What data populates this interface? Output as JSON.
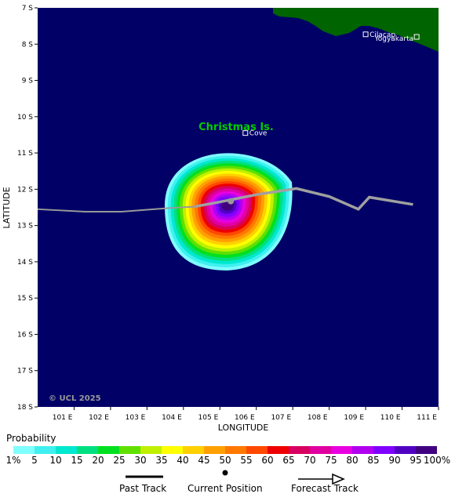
{
  "map": {
    "lat_ticks": [
      "7 S",
      "8 S",
      "9 S",
      "10 S",
      "11 S",
      "12 S",
      "13 S",
      "14 S",
      "15 S",
      "16 S",
      "17 S",
      "18 S"
    ],
    "lon_ticks": [
      "101 E",
      "102 E",
      "103 E",
      "104 E",
      "105 E",
      "106 E",
      "107 E",
      "108 E",
      "109 E",
      "110 E",
      "111 E"
    ],
    "xlabel": "LONGITUDE",
    "ylabel": "LATITUDE",
    "copyright": "© UCL 2025",
    "ocean_color": "#000066",
    "land_color": "#006400",
    "places": [
      {
        "name": "Christmas Is.",
        "lon": 105.6,
        "lat": -10.5,
        "kind": "island",
        "color": "#00cc00"
      },
      {
        "name": "Cove",
        "lon": 105.7,
        "lat": -10.45,
        "kind": "town",
        "color": "#ffffff"
      },
      {
        "name": "Cilacap",
        "lon": 109.0,
        "lat": -7.73,
        "kind": "town",
        "color": "#ffffff"
      },
      {
        "name": "Yogyakarta",
        "lon": 110.4,
        "lat": -7.8,
        "kind": "town",
        "color": "#ffffff"
      }
    ],
    "track_points": [
      [
        100.0,
        -12.55
      ],
      [
        101.3,
        -12.62
      ],
      [
        102.3,
        -12.62
      ],
      [
        103.6,
        -12.52
      ],
      [
        104.3,
        -12.48
      ],
      [
        105.0,
        -12.35
      ],
      [
        106.0,
        -12.15
      ],
      [
        107.1,
        -11.98
      ],
      [
        108.0,
        -12.2
      ],
      [
        108.8,
        -12.55
      ],
      [
        109.1,
        -12.22
      ],
      [
        110.3,
        -12.42
      ]
    ],
    "current_position": [
      105.3,
      -12.33
    ]
  },
  "legend": {
    "title": "Probability",
    "labels": [
      "1%",
      "5",
      "10",
      "15",
      "20",
      "25",
      "30",
      "35",
      "40",
      "45",
      "50",
      "55",
      "60",
      "65",
      "70",
      "75",
      "80",
      "85",
      "90",
      "95",
      "100%"
    ],
    "colors": [
      "#80ffff",
      "#40f0f0",
      "#00e8d0",
      "#00e080",
      "#00e020",
      "#60e000",
      "#c0f000",
      "#ffff00",
      "#ffd000",
      "#ffa000",
      "#ff7800",
      "#ff4800",
      "#ee0000",
      "#d80060",
      "#e000a0",
      "#e800e0",
      "#b000f0",
      "#8000ff",
      "#5000c0",
      "#400080"
    ],
    "items": [
      {
        "label": "Past Track"
      },
      {
        "label": "Current Position"
      },
      {
        "label": "Forecast Track"
      }
    ]
  }
}
